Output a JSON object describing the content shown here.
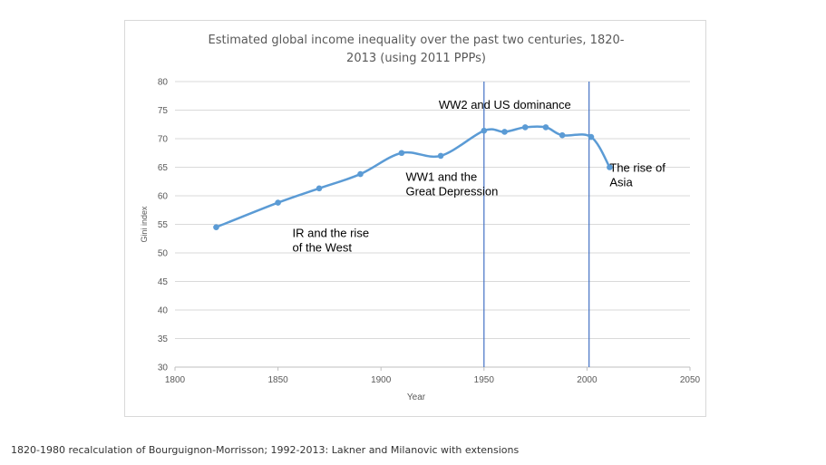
{
  "chart_data": {
    "type": "line",
    "title_lines": [
      "Estimated global  income inequality over the past two centuries, 1820-",
      "2013 (using 2011 PPPs)"
    ],
    "xlabel": "Year",
    "ylabel": "Gini index",
    "xlim": [
      1800,
      2050
    ],
    "ylim": [
      30,
      80
    ],
    "xticks": [
      1800,
      1850,
      1900,
      1950,
      2000,
      2050
    ],
    "yticks": [
      30,
      35,
      40,
      45,
      50,
      55,
      60,
      65,
      70,
      75,
      80
    ],
    "grid": true,
    "series": [
      {
        "color": "#5b9bd5",
        "x": [
          1820,
          1850,
          1870,
          1890,
          1910,
          1929,
          1950,
          1960,
          1970,
          1980,
          1988,
          2002,
          2011
        ],
        "y": [
          54.5,
          58.8,
          61.3,
          63.8,
          67.5,
          67.0,
          71.4,
          71.2,
          72.0,
          72.0,
          70.6,
          70.3,
          65.0
        ]
      }
    ],
    "vlines": [
      1950,
      2001
    ],
    "vline_color": "#4472c4",
    "annotations": [
      {
        "lines": [
          "IR and the rise",
          "of the West"
        ],
        "x": 1857,
        "y": 52.8
      },
      {
        "lines": [
          "WW1 and the",
          "Great Depression"
        ],
        "x": 1912,
        "y": 62.6
      },
      {
        "lines": [
          "WW2 and US dominance"
        ],
        "x": 1928,
        "y": 75.2
      },
      {
        "lines": [
          "The rise of",
          "Asia"
        ],
        "x": 2011,
        "y": 64.2
      }
    ]
  },
  "footnote": "1820-1980 recalculation of Bourguignon-Morrisson; 1992-2013: Lakner and Milanovic with extensions"
}
